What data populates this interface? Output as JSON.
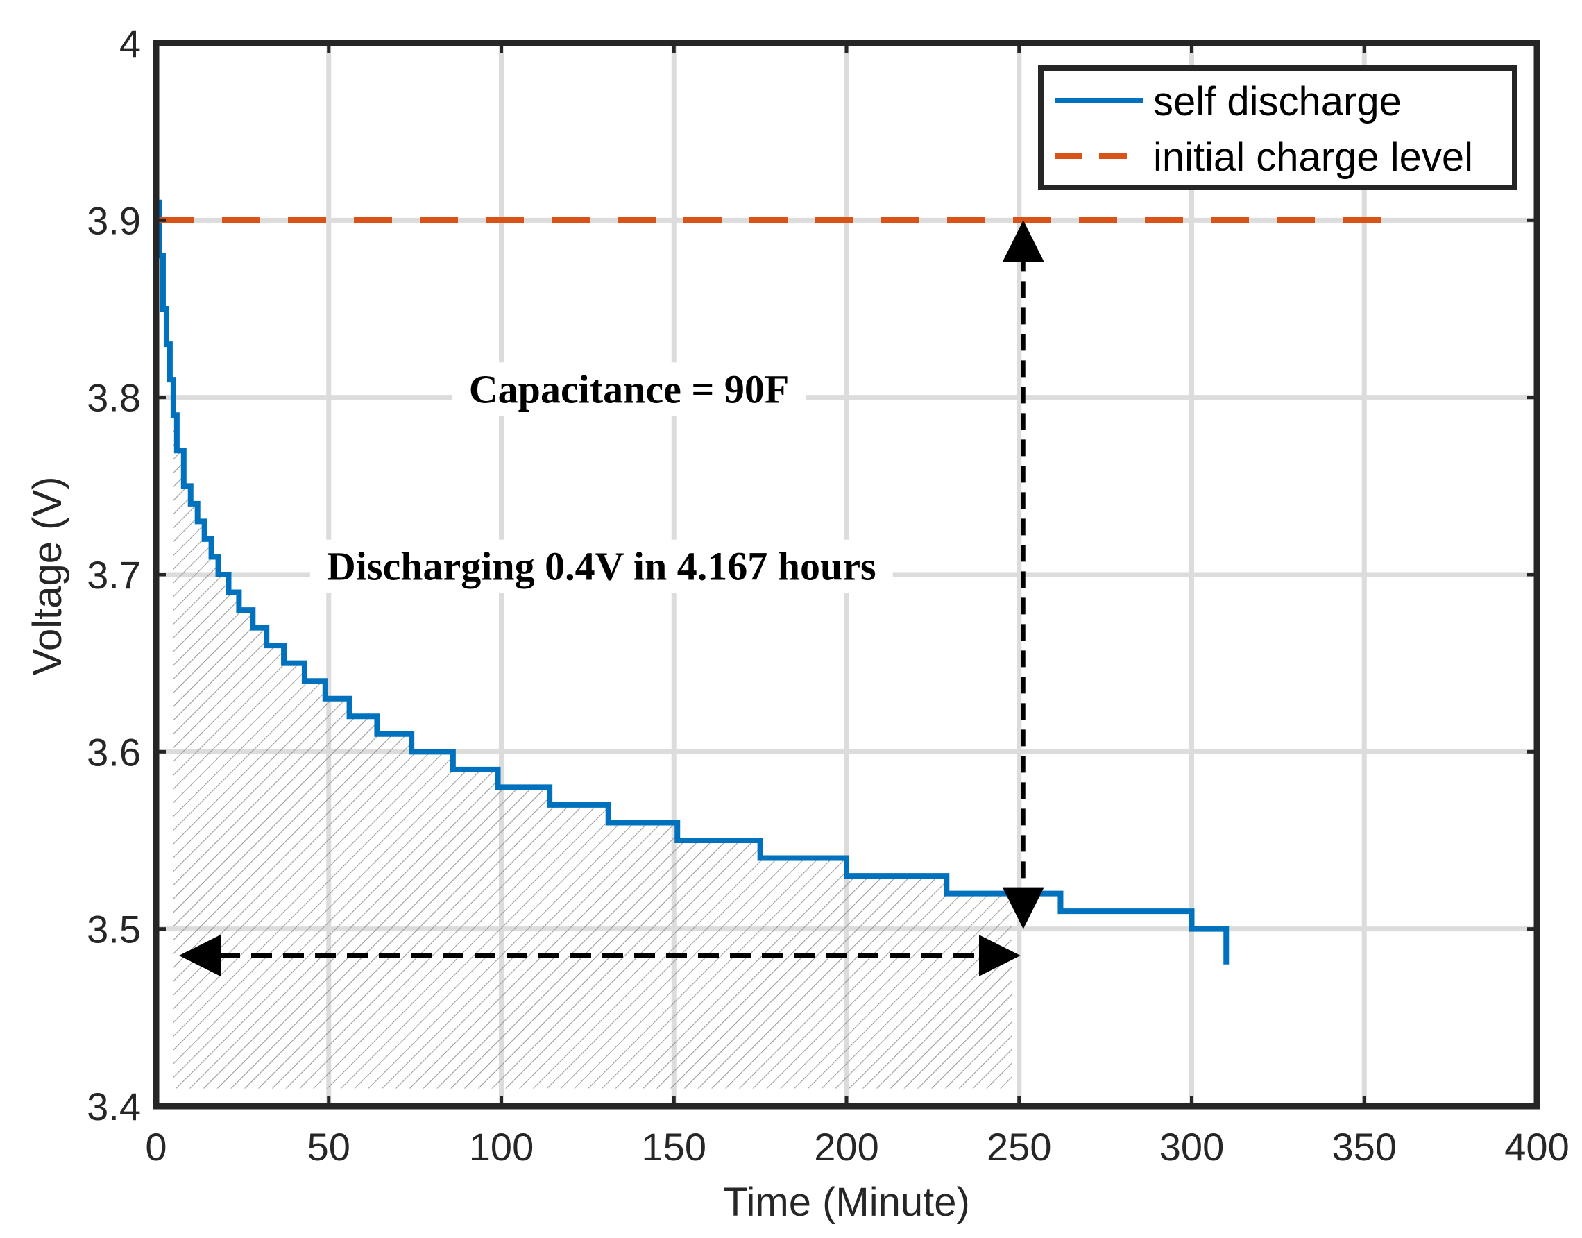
{
  "chart_data": {
    "type": "line",
    "xlabel": "Time (Minute)",
    "ylabel": "Voltage (V)",
    "xlim": [
      0,
      400
    ],
    "ylim": [
      3.4,
      4
    ],
    "x_ticks": [
      "0",
      "50",
      "100",
      "150",
      "200",
      "250",
      "300",
      "350",
      "400"
    ],
    "y_ticks": [
      "3.4",
      "3.5",
      "3.6",
      "3.7",
      "3.8",
      "3.9",
      "4"
    ],
    "grid": true,
    "legend_position": "top-right",
    "series": [
      {
        "name": "self discharge",
        "style": "solid-step",
        "color": "#0072BD",
        "x": [
          0,
          1,
          2,
          3,
          4,
          5,
          6,
          8,
          10,
          12,
          14,
          16,
          18,
          21,
          24,
          28,
          32,
          37,
          43,
          49,
          56,
          64,
          74,
          86,
          99,
          114,
          131,
          151,
          175,
          200,
          229,
          262,
          300,
          310
        ],
        "y": [
          3.91,
          3.88,
          3.85,
          3.83,
          3.81,
          3.79,
          3.77,
          3.75,
          3.74,
          3.73,
          3.72,
          3.71,
          3.7,
          3.69,
          3.68,
          3.67,
          3.66,
          3.65,
          3.64,
          3.63,
          3.62,
          3.61,
          3.6,
          3.59,
          3.58,
          3.57,
          3.56,
          3.55,
          3.54,
          3.53,
          3.52,
          3.51,
          3.5,
          3.48
        ]
      },
      {
        "name": "initial charge level",
        "style": "dashed",
        "color": "#D95319",
        "x": [
          0,
          360
        ],
        "y": [
          3.9,
          3.9
        ]
      }
    ],
    "annotations": [
      {
        "text": "Capacitance = 90F",
        "x": 137,
        "y": 3.797
      },
      {
        "text": "Discharging 0.4V in 4.167 hours",
        "x": 129,
        "y": 3.697
      }
    ],
    "arrows": [
      {
        "type": "double-vertical",
        "x": 250,
        "from_y": 3.9,
        "to_y": 3.5
      },
      {
        "type": "double-horizontal",
        "y": 3.485,
        "from_x": 0,
        "to_x": 250
      }
    ],
    "shaded_region": {
      "x_from": 5,
      "x_to": 248,
      "y_floor": 3.41
    }
  }
}
